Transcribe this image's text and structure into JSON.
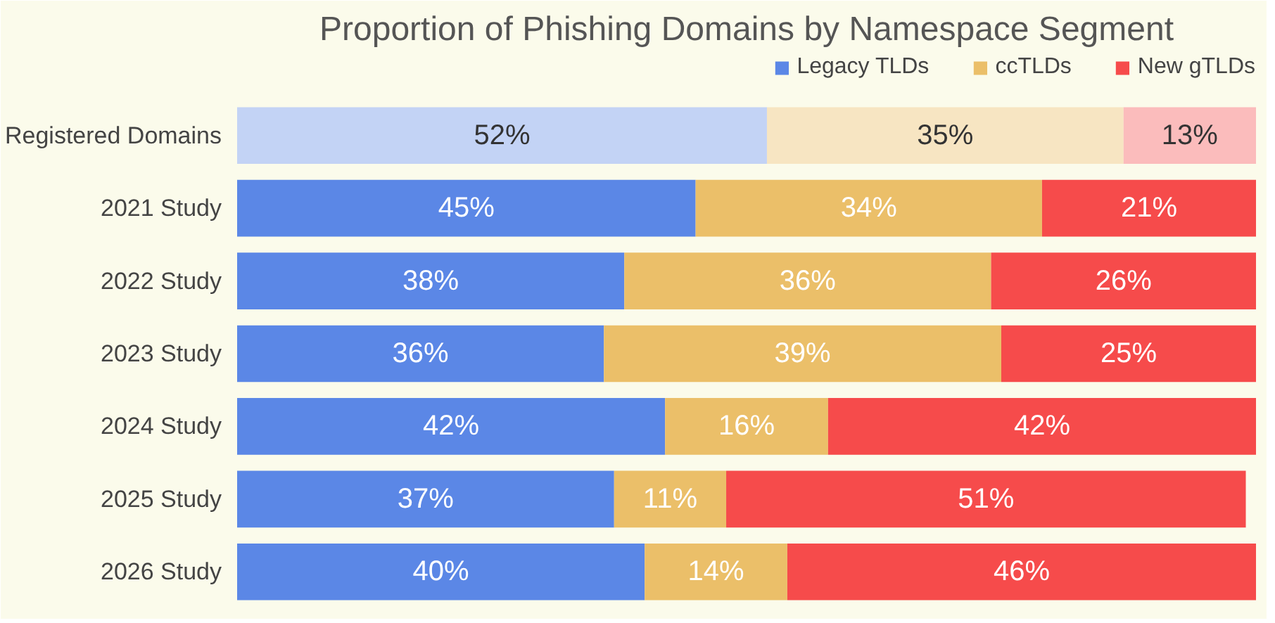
{
  "chart_data": {
    "type": "bar",
    "orientation": "horizontal",
    "stacked": true,
    "title": "Proportion of Phishing Domains by Namespace Segment",
    "categories": [
      "Registered Domains",
      "2021 Study",
      "2022 Study",
      "2023 Study",
      "2024 Study",
      "2025 Study",
      "2026 Study"
    ],
    "series": [
      {
        "name": "Legacy TLDs",
        "color": "#5b87e6",
        "colors": [
          "#c3d3f5",
          "#5b87e6",
          "#5b87e6",
          "#5b87e6",
          "#5b87e6",
          "#5b87e6",
          "#5b87e6"
        ],
        "values": [
          52,
          45,
          38,
          36,
          42,
          37,
          40
        ],
        "value_labels": [
          "52%",
          "45%",
          "38%",
          "36%",
          "42%",
          "37%",
          "40%"
        ]
      },
      {
        "name": "ccTLDs",
        "color": "#ebbf69",
        "colors": [
          "#f7e5c2",
          "#ebbf69",
          "#ebbf69",
          "#ebbf69",
          "#ebbf69",
          "#ebbf69",
          "#ebbf69"
        ],
        "values": [
          35,
          34,
          36,
          39,
          16,
          11,
          14
        ],
        "value_labels": [
          "35%",
          "34%",
          "36%",
          "39%",
          "16%",
          "11%",
          "14%"
        ]
      },
      {
        "name": "New gTLDs",
        "color": "#f64b4b",
        "colors": [
          "#fbbcbc",
          "#f64b4b",
          "#f64b4b",
          "#f64b4b",
          "#f64b4b",
          "#f64b4b",
          "#f64b4b"
        ],
        "values": [
          13,
          21,
          26,
          25,
          42,
          51,
          46
        ],
        "value_labels": [
          "13%",
          "21%",
          "26%",
          "25%",
          "42%",
          "51%",
          "46%"
        ]
      }
    ],
    "legend": "top right",
    "grid": false
  }
}
